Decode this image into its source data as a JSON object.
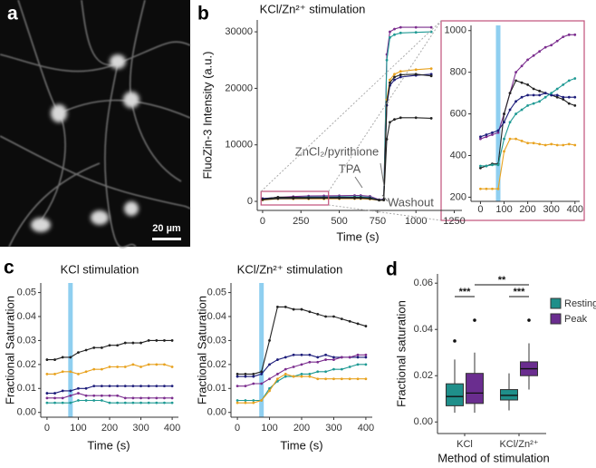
{
  "panel_labels": [
    "a",
    "b",
    "c",
    "d"
  ],
  "image": {
    "scale_bar": "20 µm"
  },
  "chart_data": [
    {
      "type": "line",
      "title": "KCl/Zn²⁺ stimulation",
      "x_label": "Time (s)",
      "y_label": "FluoZin-3 Intensity (a.u.)",
      "xlim": [
        -35,
        1300
      ],
      "ylim": [
        -1600,
        32100
      ],
      "xticks": [
        0,
        250,
        500,
        750,
        1000,
        1250
      ],
      "yticks": [
        0,
        10000,
        20000,
        30000
      ],
      "annotations": [
        "ZnCl₂/pyrithione",
        "TPA",
        "Washout"
      ],
      "x": [
        0,
        100,
        200,
        300,
        400,
        500,
        600,
        640,
        700,
        760,
        790,
        810,
        830,
        860,
        900,
        1000,
        1100
      ],
      "series": [
        {
          "color": "#7b2d8e",
          "values": [
            480,
            700,
            850,
            950,
            980,
            1000,
            1050,
            1050,
            900,
            300,
            400,
            26000,
            30000,
            30500,
            30800,
            30800,
            30800
          ]
        },
        {
          "color": "#1f9a94",
          "values": [
            350,
            600,
            700,
            770,
            770,
            800,
            820,
            820,
            700,
            250,
            300,
            25000,
            29000,
            29500,
            29800,
            29900,
            30000
          ]
        },
        {
          "color": "#e8a21f",
          "values": [
            240,
            450,
            450,
            450,
            450,
            470,
            480,
            480,
            400,
            200,
            250,
            18000,
            21500,
            22500,
            23000,
            23300,
            23500
          ]
        },
        {
          "color": "#1c1c7a",
          "values": [
            490,
            700,
            680,
            680,
            680,
            700,
            700,
            700,
            600,
            250,
            300,
            17000,
            20500,
            21500,
            22000,
            22300,
            22500
          ]
        },
        {
          "color": "#222222",
          "values": [
            350,
            750,
            700,
            650,
            650,
            650,
            660,
            660,
            560,
            230,
            280,
            17500,
            21000,
            22000,
            22400,
            22500,
            22200
          ]
        },
        {
          "color": "#222222",
          "values": [
            300,
            500,
            520,
            540,
            550,
            560,
            560,
            560,
            480,
            200,
            220,
            11000,
            14000,
            14500,
            14800,
            14800,
            14700
          ]
        }
      ]
    },
    {
      "type": "line",
      "xlim": [
        -40,
        420
      ],
      "ylim": [
        180,
        1025
      ],
      "xticks": [
        0,
        100,
        200,
        300,
        400
      ],
      "yticks": [
        200,
        400,
        600,
        800,
        1000
      ],
      "stimulus_x": 75,
      "x": [
        0,
        25,
        50,
        75,
        100,
        125,
        150,
        175,
        200,
        225,
        250,
        275,
        300,
        325,
        350,
        375,
        400
      ],
      "series": [
        {
          "color": "#7b2d8e",
          "values": [
            480,
            490,
            500,
            510,
            600,
            700,
            800,
            830,
            860,
            880,
            900,
            920,
            930,
            950,
            970,
            980,
            980
          ]
        },
        {
          "color": "#222222",
          "values": [
            340,
            350,
            360,
            360,
            600,
            700,
            760,
            750,
            740,
            720,
            710,
            700,
            690,
            680,
            670,
            650,
            640
          ]
        },
        {
          "color": "#1c1c7a",
          "values": [
            490,
            500,
            510,
            520,
            560,
            620,
            660,
            680,
            690,
            690,
            690,
            700,
            690,
            690,
            680,
            680,
            680
          ]
        },
        {
          "color": "#1f9a94",
          "values": [
            350,
            350,
            355,
            355,
            480,
            560,
            600,
            620,
            640,
            650,
            660,
            680,
            700,
            720,
            740,
            760,
            770
          ]
        },
        {
          "color": "#e8a21f",
          "values": [
            240,
            240,
            240,
            240,
            420,
            480,
            480,
            470,
            460,
            460,
            455,
            450,
            455,
            450,
            450,
            455,
            450
          ]
        }
      ]
    },
    {
      "type": "line",
      "title": "KCl stimulation",
      "x_label": "Time (s)",
      "y_label": "Fractional Saturation",
      "xlim": [
        -20,
        420
      ],
      "ylim": [
        -0.002,
        0.054
      ],
      "xticks": [
        0,
        100,
        200,
        300,
        400
      ],
      "yticks": [
        {
          "value": 0,
          "label": "0.00"
        },
        {
          "value": 0.01,
          "label": "0.01"
        },
        {
          "value": 0.02,
          "label": "0.02"
        },
        {
          "value": 0.03,
          "label": "0.03"
        },
        {
          "value": 0.04,
          "label": "0.04"
        },
        {
          "value": 0.05,
          "label": "0.05"
        }
      ],
      "stimulus_x": 75,
      "x": [
        0,
        25,
        50,
        75,
        100,
        125,
        150,
        175,
        200,
        225,
        250,
        275,
        300,
        325,
        350,
        375,
        400
      ],
      "series": [
        {
          "color": "#222222",
          "values": [
            0.022,
            0.022,
            0.023,
            0.023,
            0.025,
            0.026,
            0.027,
            0.027,
            0.028,
            0.028,
            0.029,
            0.029,
            0.029,
            0.03,
            0.03,
            0.03,
            0.03
          ]
        },
        {
          "color": "#e8a21f",
          "values": [
            0.016,
            0.016,
            0.017,
            0.017,
            0.016,
            0.017,
            0.018,
            0.018,
            0.019,
            0.019,
            0.019,
            0.02,
            0.019,
            0.02,
            0.02,
            0.02,
            0.019
          ]
        },
        {
          "color": "#1c1c7a",
          "values": [
            0.008,
            0.008,
            0.009,
            0.009,
            0.01,
            0.01,
            0.011,
            0.011,
            0.011,
            0.011,
            0.011,
            0.011,
            0.011,
            0.011,
            0.011,
            0.011,
            0.011
          ]
        },
        {
          "color": "#7b2d8e",
          "values": [
            0.006,
            0.006,
            0.006,
            0.007,
            0.008,
            0.007,
            0.007,
            0.007,
            0.007,
            0.007,
            0.006,
            0.006,
            0.006,
            0.006,
            0.006,
            0.006,
            0.006
          ]
        },
        {
          "color": "#1f9a94",
          "values": [
            0.004,
            0.004,
            0.004,
            0.004,
            0.005,
            0.005,
            0.005,
            0.005,
            0.004,
            0.004,
            0.004,
            0.004,
            0.004,
            0.004,
            0.004,
            0.004,
            0.004
          ]
        }
      ]
    },
    {
      "type": "line",
      "title": "KCl/Zn²⁺ stimulation",
      "x_label": "Time (s)",
      "y_label": "Fractional Saturation",
      "xlim": [
        -20,
        420
      ],
      "ylim": [
        -0.002,
        0.054
      ],
      "xticks": [
        0,
        100,
        200,
        300,
        400
      ],
      "yticks": [
        {
          "value": 0,
          "label": "0.00"
        },
        {
          "value": 0.01,
          "label": "0.01"
        },
        {
          "value": 0.02,
          "label": "0.02"
        },
        {
          "value": 0.03,
          "label": "0.03"
        },
        {
          "value": 0.04,
          "label": "0.04"
        },
        {
          "value": 0.05,
          "label": "0.05"
        }
      ],
      "stimulus_x": 75,
      "x": [
        0,
        25,
        50,
        75,
        100,
        125,
        150,
        175,
        200,
        225,
        250,
        275,
        300,
        325,
        350,
        375,
        400
      ],
      "series": [
        {
          "color": "#222222",
          "values": [
            0.016,
            0.016,
            0.016,
            0.017,
            0.03,
            0.044,
            0.044,
            0.043,
            0.043,
            0.042,
            0.041,
            0.04,
            0.04,
            0.039,
            0.038,
            0.037,
            0.036
          ]
        },
        {
          "color": "#1c1c7a",
          "values": [
            0.015,
            0.015,
            0.015,
            0.016,
            0.02,
            0.022,
            0.023,
            0.024,
            0.024,
            0.024,
            0.023,
            0.024,
            0.023,
            0.023,
            0.023,
            0.023,
            0.023
          ]
        },
        {
          "color": "#7b2d8e",
          "values": [
            0.011,
            0.011,
            0.012,
            0.012,
            0.014,
            0.016,
            0.018,
            0.019,
            0.02,
            0.021,
            0.021,
            0.022,
            0.022,
            0.023,
            0.023,
            0.024,
            0.024
          ]
        },
        {
          "color": "#1f9a94",
          "values": [
            0.005,
            0.005,
            0.005,
            0.005,
            0.01,
            0.013,
            0.015,
            0.015,
            0.016,
            0.016,
            0.017,
            0.017,
            0.018,
            0.018,
            0.019,
            0.02,
            0.02
          ]
        },
        {
          "color": "#e8a21f",
          "values": [
            0.004,
            0.004,
            0.004,
            0.005,
            0.009,
            0.014,
            0.016,
            0.015,
            0.015,
            0.015,
            0.014,
            0.014,
            0.014,
            0.014,
            0.014,
            0.014,
            0.014
          ]
        }
      ]
    },
    {
      "type": "box",
      "x_label": "Method of stimulation",
      "y_label": "Fractional saturation",
      "ylim": [
        -0.005,
        0.064
      ],
      "yticks": [
        {
          "value": 0,
          "label": "0.00"
        },
        {
          "value": 0.02,
          "label": "0.02"
        },
        {
          "value": 0.04,
          "label": "0.04"
        },
        {
          "value": 0.06,
          "label": "0.06"
        }
      ],
      "categories": [
        "KCl",
        "KCl/Zn²⁺"
      ],
      "significance": [
        "***",
        "**",
        "***"
      ],
      "series": [
        {
          "name": "Resting",
          "color": "#1f8f8a",
          "values": [
            {
              "min": 0.004,
              "q1": 0.007,
              "median": 0.011,
              "q3": 0.0165,
              "max": 0.027,
              "outliers": [
                0.035
              ]
            },
            {
              "min": 0.005,
              "q1": 0.0095,
              "median": 0.0115,
              "q3": 0.014,
              "max": 0.021,
              "outliers": []
            }
          ]
        },
        {
          "name": "Peak",
          "color": "#6a2d8f",
          "values": [
            {
              "min": 0.004,
              "q1": 0.008,
              "median": 0.0125,
              "q3": 0.021,
              "max": 0.03,
              "outliers": [
                0.044
              ]
            },
            {
              "min": 0.014,
              "q1": 0.02,
              "median": 0.023,
              "q3": 0.026,
              "max": 0.034,
              "outliers": [
                0.044
              ]
            }
          ]
        }
      ]
    }
  ]
}
